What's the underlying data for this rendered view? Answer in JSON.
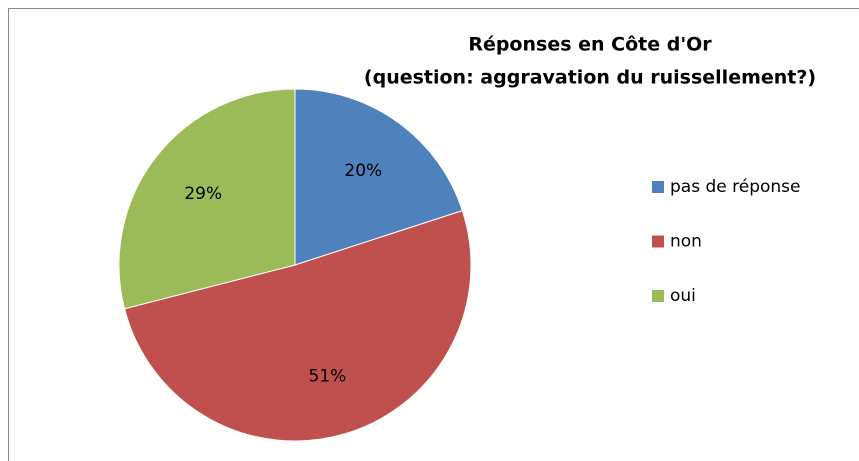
{
  "chart_data": {
    "type": "pie",
    "title": "Réponses en Côte d'Or",
    "subtitle": "(question: aggravation du ruissellement?)",
    "categories": [
      "pas de réponse",
      "non",
      "oui"
    ],
    "values": [
      20,
      51,
      29
    ],
    "value_labels": [
      "20%",
      "51%",
      "29%"
    ],
    "colors": [
      "#4f81bd",
      "#c0504d",
      "#9bbb59"
    ],
    "legend": "right"
  }
}
